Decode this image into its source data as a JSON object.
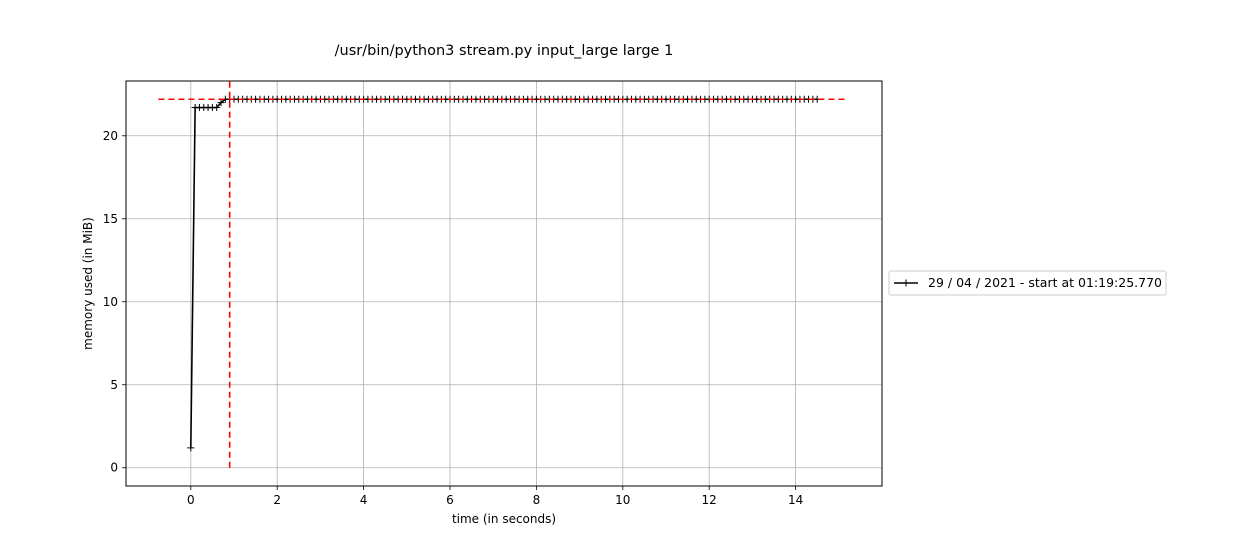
{
  "chart_data": {
    "type": "line",
    "title": "/usr/bin/python3 stream.py input_large large 1",
    "xlabel": "time (in seconds)",
    "ylabel": "memory used (in MiB)",
    "xlim": [
      -1.5,
      16.0
    ],
    "ylim": [
      -1.1,
      23.3
    ],
    "xticks": [
      0,
      2,
      4,
      6,
      8,
      10,
      12,
      14
    ],
    "yticks": [
      0,
      5,
      10,
      15,
      20
    ],
    "grid": true,
    "legend_placement": "outside-right",
    "series": [
      {
        "name": "29 / 04 / 2021 - start at 01:19:25.770",
        "color": "#000000",
        "marker": "plus",
        "x": [
          0.0,
          0.1,
          0.2,
          0.3,
          0.4,
          0.5,
          0.6,
          0.7,
          0.8,
          0.9,
          1.0,
          1.1,
          1.2,
          1.3,
          1.4,
          1.5,
          1.6,
          1.7,
          1.8,
          1.9,
          2.0,
          2.1,
          2.2,
          2.3,
          2.4,
          2.5,
          2.6,
          2.7,
          2.8,
          2.9,
          3.0,
          3.1,
          3.2,
          3.3,
          3.4,
          3.5,
          3.6,
          3.7,
          3.8,
          3.9,
          4.0,
          4.1,
          4.2,
          4.3,
          4.4,
          4.5,
          4.6,
          4.7,
          4.8,
          4.9,
          5.0,
          5.1,
          5.2,
          5.3,
          5.4,
          5.5,
          5.6,
          5.7,
          5.8,
          5.9,
          6.0,
          6.1,
          6.2,
          6.3,
          6.4,
          6.5,
          6.6,
          6.7,
          6.8,
          6.9,
          7.0,
          7.1,
          7.2,
          7.3,
          7.4,
          7.5,
          7.6,
          7.7,
          7.8,
          7.9,
          8.0,
          8.1,
          8.2,
          8.3,
          8.4,
          8.5,
          8.6,
          8.7,
          8.8,
          8.9,
          9.0,
          9.1,
          9.2,
          9.3,
          9.4,
          9.5,
          9.6,
          9.7,
          9.8,
          9.9,
          10.0,
          10.1,
          10.2,
          10.3,
          10.4,
          10.5,
          10.6,
          10.7,
          10.8,
          10.9,
          11.0,
          11.1,
          11.2,
          11.3,
          11.4,
          11.5,
          11.6,
          11.7,
          11.8,
          11.9,
          12.0,
          12.1,
          12.2,
          12.3,
          12.4,
          12.5,
          12.6,
          12.7,
          12.8,
          12.9,
          13.0,
          13.1,
          13.2,
          13.3,
          13.4,
          13.5,
          13.6,
          13.7,
          13.8,
          13.9,
          14.0,
          14.1,
          14.2,
          14.3,
          14.4,
          14.5
        ],
        "y": [
          1.2,
          21.7,
          21.7,
          21.7,
          21.7,
          21.7,
          21.7,
          22.0,
          22.2,
          22.2,
          22.2,
          22.2,
          22.2,
          22.2,
          22.2,
          22.2,
          22.2,
          22.2,
          22.2,
          22.2,
          22.2,
          22.2,
          22.2,
          22.2,
          22.2,
          22.2,
          22.2,
          22.2,
          22.2,
          22.2,
          22.2,
          22.2,
          22.2,
          22.2,
          22.2,
          22.2,
          22.2,
          22.2,
          22.2,
          22.2,
          22.2,
          22.2,
          22.2,
          22.2,
          22.2,
          22.2,
          22.2,
          22.2,
          22.2,
          22.2,
          22.2,
          22.2,
          22.2,
          22.2,
          22.2,
          22.2,
          22.2,
          22.2,
          22.2,
          22.2,
          22.2,
          22.2,
          22.2,
          22.2,
          22.2,
          22.2,
          22.2,
          22.2,
          22.2,
          22.2,
          22.2,
          22.2,
          22.2,
          22.2,
          22.2,
          22.2,
          22.2,
          22.2,
          22.2,
          22.2,
          22.2,
          22.2,
          22.2,
          22.2,
          22.2,
          22.2,
          22.2,
          22.2,
          22.2,
          22.2,
          22.2,
          22.2,
          22.2,
          22.2,
          22.2,
          22.2,
          22.2,
          22.2,
          22.2,
          22.2,
          22.2,
          22.2,
          22.2,
          22.2,
          22.2,
          22.2,
          22.2,
          22.2,
          22.2,
          22.2,
          22.2,
          22.2,
          22.2,
          22.2,
          22.2,
          22.2,
          22.2,
          22.2,
          22.2,
          22.2,
          22.2,
          22.2,
          22.2,
          22.2,
          22.2,
          22.2,
          22.2,
          22.2,
          22.2,
          22.2,
          22.2,
          22.2,
          22.2,
          22.2,
          22.2,
          22.2,
          22.2,
          22.2,
          22.2,
          22.2,
          22.2,
          22.2,
          22.2,
          22.2,
          22.2,
          22.2
        ]
      }
    ],
    "max_markers": {
      "color": "#ff0000",
      "style": "dashed",
      "x": 0.9,
      "y": 22.2,
      "hline_x_range": [
        -0.75,
        15.2
      ],
      "vline_y_range": [
        0,
        23.3
      ]
    }
  }
}
